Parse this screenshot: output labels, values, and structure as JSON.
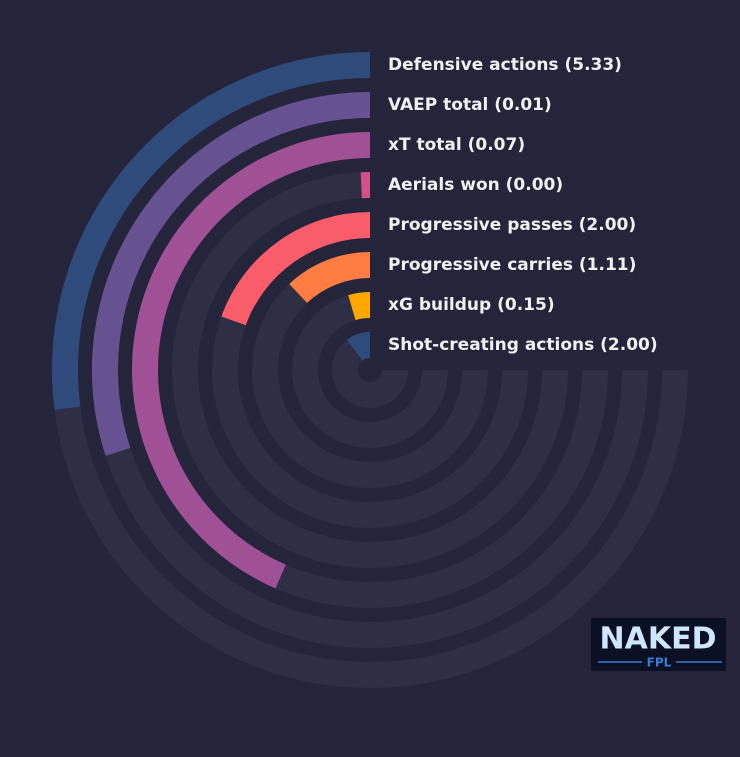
{
  "chart_data": {
    "type": "radial-bar",
    "categories": [
      "Defensive actions (5.33)",
      "VAEP total (0.01)",
      "xT total (0.07)",
      "Aerials won (0.00)",
      "Progressive passes (2.00)",
      "Progressive carries (1.11)",
      "xG buildup (0.15)",
      "Shot-creating actions (2.00)"
    ],
    "values": [
      36,
      40,
      58,
      1,
      26,
      16,
      6,
      14
    ],
    "colors": [
      "#2f4b7c",
      "#665191",
      "#a05195",
      "#d45087",
      "#f95d6a",
      "#ff7c43",
      "#ffa600",
      "#2f4b7c"
    ],
    "ylim": [
      0,
      100
    ]
  },
  "logo": {
    "text": "NAKED",
    "subtext": "FPL"
  }
}
